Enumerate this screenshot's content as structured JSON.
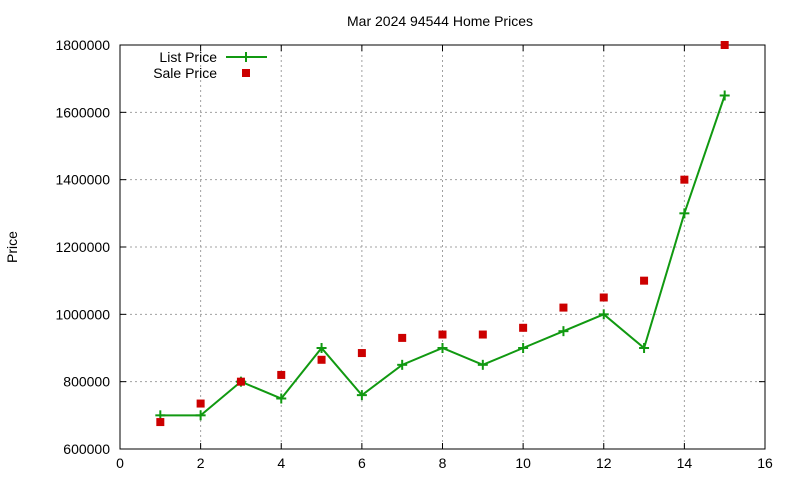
{
  "chart_data": {
    "type": "line",
    "title": "Mar 2024 94544 Home Prices",
    "xlabel": "",
    "ylabel": "Price",
    "xlim": [
      0,
      16
    ],
    "ylim": [
      600000,
      1800000
    ],
    "xticks": [
      0,
      2,
      4,
      6,
      8,
      10,
      12,
      14,
      16
    ],
    "yticks": [
      600000,
      800000,
      1000000,
      1200000,
      1400000,
      1600000,
      1800000
    ],
    "x_tick_labels": [
      "0",
      "2",
      "4",
      "6",
      "8",
      "10",
      "12",
      "14",
      "16"
    ],
    "y_tick_labels": [
      "600000",
      "800000",
      "1000000",
      "1200000",
      "1400000",
      "1600000",
      "1800000"
    ],
    "grid": true,
    "legend_position": "top-left",
    "series": [
      {
        "name": "List Price",
        "style": "line-plus",
        "color": "#119911",
        "x": [
          1,
          2,
          3,
          4,
          5,
          6,
          7,
          8,
          9,
          10,
          11,
          12,
          13,
          14,
          15
        ],
        "y": [
          700000,
          700000,
          800000,
          750000,
          900000,
          760000,
          850000,
          900000,
          850000,
          900000,
          950000,
          1000000,
          900000,
          1300000,
          1650000
        ]
      },
      {
        "name": "Sale Price",
        "style": "square-points",
        "color": "#cc0000",
        "x": [
          1,
          2,
          3,
          4,
          5,
          6,
          7,
          8,
          9,
          10,
          11,
          12,
          13,
          14,
          15
        ],
        "y": [
          680000,
          735000,
          800000,
          820000,
          865000,
          885000,
          930000,
          940000,
          940000,
          960000,
          1020000,
          1050000,
          1100000,
          1400000,
          1800000
        ]
      }
    ]
  }
}
